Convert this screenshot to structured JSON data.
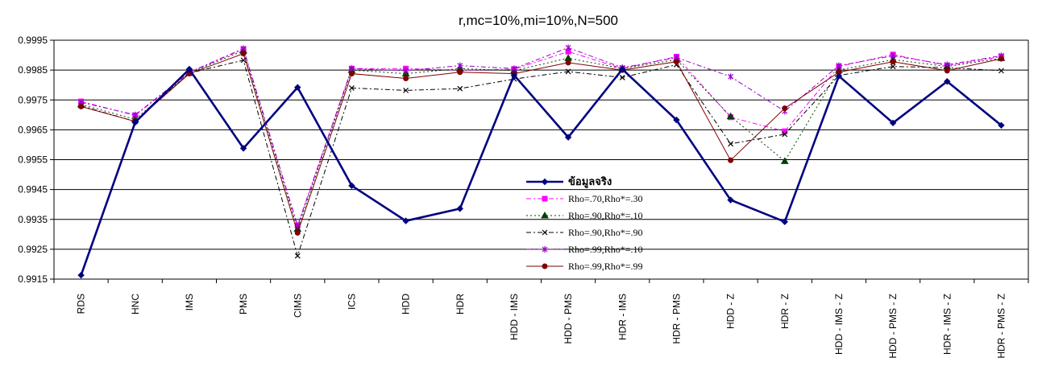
{
  "chart_data": {
    "type": "line",
    "title": "r,mc=10%,mi=10%,N=500",
    "xlabel": "",
    "ylabel": "",
    "ylim": [
      0.9915,
      0.9995
    ],
    "yticks": [
      "0.9995",
      "0.9985",
      "0.9975",
      "0.9965",
      "0.9955",
      "0.9945",
      "0.9935",
      "0.9925",
      "0.9915"
    ],
    "grid": true,
    "legend_position": "inside-lower-middle",
    "categories": [
      "RDS",
      "HNC",
      "IMS",
      "PMS",
      "CIMS",
      "ICS",
      "HDD",
      "HDR",
      "HDD - IMS",
      "HDD - PMS",
      "HDR - IMS",
      "HDR - PMS",
      "HDD - Z",
      "HDR - Z",
      "HDD - IMS - Z",
      "HDD - PMS - Z",
      "HDR - IMS - Z",
      "HDR - PMS - Z"
    ],
    "series": [
      {
        "name": "ข้อมูลจริง",
        "color": "#000080",
        "marker": "diamond",
        "dash": "solid",
        "values": [
          0.99163,
          0.99675,
          0.99853,
          0.99588,
          0.99792,
          0.99463,
          0.99345,
          0.99386,
          0.99833,
          0.99625,
          0.99853,
          0.99683,
          0.99415,
          0.99342,
          0.9983,
          0.99673,
          0.99812,
          0.99665
        ]
      },
      {
        "name": "Rho=.70,Rho*=.30",
        "color": "#ff00ff",
        "marker": "square",
        "dash": "dashdot",
        "values": [
          0.99745,
          0.99698,
          0.99842,
          0.9992,
          0.9933,
          0.99855,
          0.99855,
          0.9985,
          0.99853,
          0.99912,
          0.99855,
          0.99895,
          0.99692,
          0.99645,
          0.99862,
          0.99902,
          0.99865,
          0.99895
        ]
      },
      {
        "name": "Rho=.90,Rho*=.10",
        "color": "#004000",
        "marker": "triangle",
        "dash": "dotted",
        "values": [
          0.99735,
          0.99685,
          0.9984,
          0.99915,
          0.99318,
          0.9985,
          0.99838,
          0.99855,
          0.99848,
          0.9989,
          0.99855,
          0.99885,
          0.99695,
          0.99545,
          0.9985,
          0.99885,
          0.99862,
          0.9989
        ]
      },
      {
        "name": "Rho=.90,Rho*=.90",
        "color": "#000000",
        "marker": "x",
        "dash": "dashdot",
        "values": [
          0.9973,
          0.99678,
          0.9984,
          0.99883,
          0.99228,
          0.9979,
          0.99782,
          0.99788,
          0.9982,
          0.99845,
          0.99825,
          0.99868,
          0.99603,
          0.99635,
          0.99832,
          0.99862,
          0.99858,
          0.99848
        ]
      },
      {
        "name": "Rho=.99,Rho*=.10",
        "color": "#9900cc",
        "marker": "star",
        "dash": "dashdot",
        "values": [
          0.99742,
          0.997,
          0.99843,
          0.99922,
          0.99328,
          0.99855,
          0.99848,
          0.99865,
          0.99855,
          0.99925,
          0.99858,
          0.99892,
          0.99828,
          0.99712,
          0.99865,
          0.99898,
          0.99868,
          0.99898
        ]
      },
      {
        "name": "Rho=.99,Rho*=.99",
        "color": "#800000",
        "marker": "circle",
        "dash": "solid",
        "values": [
          0.99728,
          0.99678,
          0.99838,
          0.99905,
          0.99305,
          0.99838,
          0.99822,
          0.99843,
          0.99838,
          0.99875,
          0.9985,
          0.99878,
          0.99548,
          0.99722,
          0.99843,
          0.99878,
          0.99848,
          0.99888
        ]
      }
    ]
  }
}
